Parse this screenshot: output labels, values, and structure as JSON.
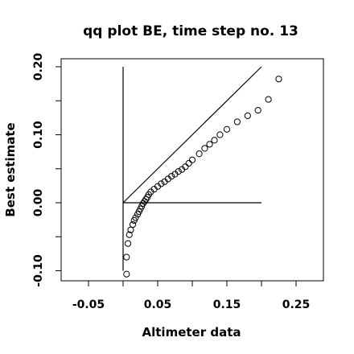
{
  "chart_data": {
    "type": "scatter",
    "title": "qq plot BE, time step no. 13",
    "xlabel": "Altimeter data",
    "ylabel": "Best estimate",
    "xlim": [
      -0.1,
      0.3
    ],
    "ylim": [
      -0.11,
      0.215
    ],
    "xticks": [
      -0.05,
      0.05,
      0.15,
      0.25
    ],
    "xtick_labels": [
      "-0.05",
      "0.05",
      "0.15",
      "0.25"
    ],
    "yticks": [
      -0.1,
      0.0,
      0.1,
      0.2
    ],
    "ytick_labels": [
      "-0.10",
      "0.00",
      "0.10",
      "0.20"
    ],
    "grid": false,
    "reference_lines": [
      {
        "x": [
          0.0,
          0.0
        ],
        "y": [
          -0.1,
          0.2
        ]
      },
      {
        "x": [
          0.0,
          0.2
        ],
        "y": [
          0.0,
          0.0
        ]
      },
      {
        "x": [
          0.0,
          0.2
        ],
        "y": [
          0.0,
          0.2
        ]
      }
    ],
    "points": {
      "x": [
        0.005,
        0.005,
        0.007,
        0.009,
        0.011,
        0.014,
        0.016,
        0.018,
        0.021,
        0.023,
        0.025,
        0.027,
        0.029,
        0.031,
        0.033,
        0.035,
        0.037,
        0.04,
        0.045,
        0.05,
        0.055,
        0.06,
        0.065,
        0.07,
        0.075,
        0.08,
        0.085,
        0.09,
        0.095,
        0.1,
        0.11,
        0.118,
        0.125,
        0.132,
        0.14,
        0.15,
        0.165,
        0.18,
        0.195,
        0.21,
        0.225
      ],
      "y": [
        -0.105,
        -0.08,
        -0.06,
        -0.047,
        -0.04,
        -0.032,
        -0.026,
        -0.022,
        -0.017,
        -0.013,
        -0.009,
        -0.005,
        -0.001,
        0.002,
        0.005,
        0.008,
        0.012,
        0.016,
        0.02,
        0.024,
        0.028,
        0.031,
        0.035,
        0.039,
        0.042,
        0.046,
        0.049,
        0.053,
        0.058,
        0.063,
        0.072,
        0.08,
        0.086,
        0.092,
        0.1,
        0.108,
        0.119,
        0.128,
        0.136,
        0.152,
        0.182
      ]
    }
  }
}
